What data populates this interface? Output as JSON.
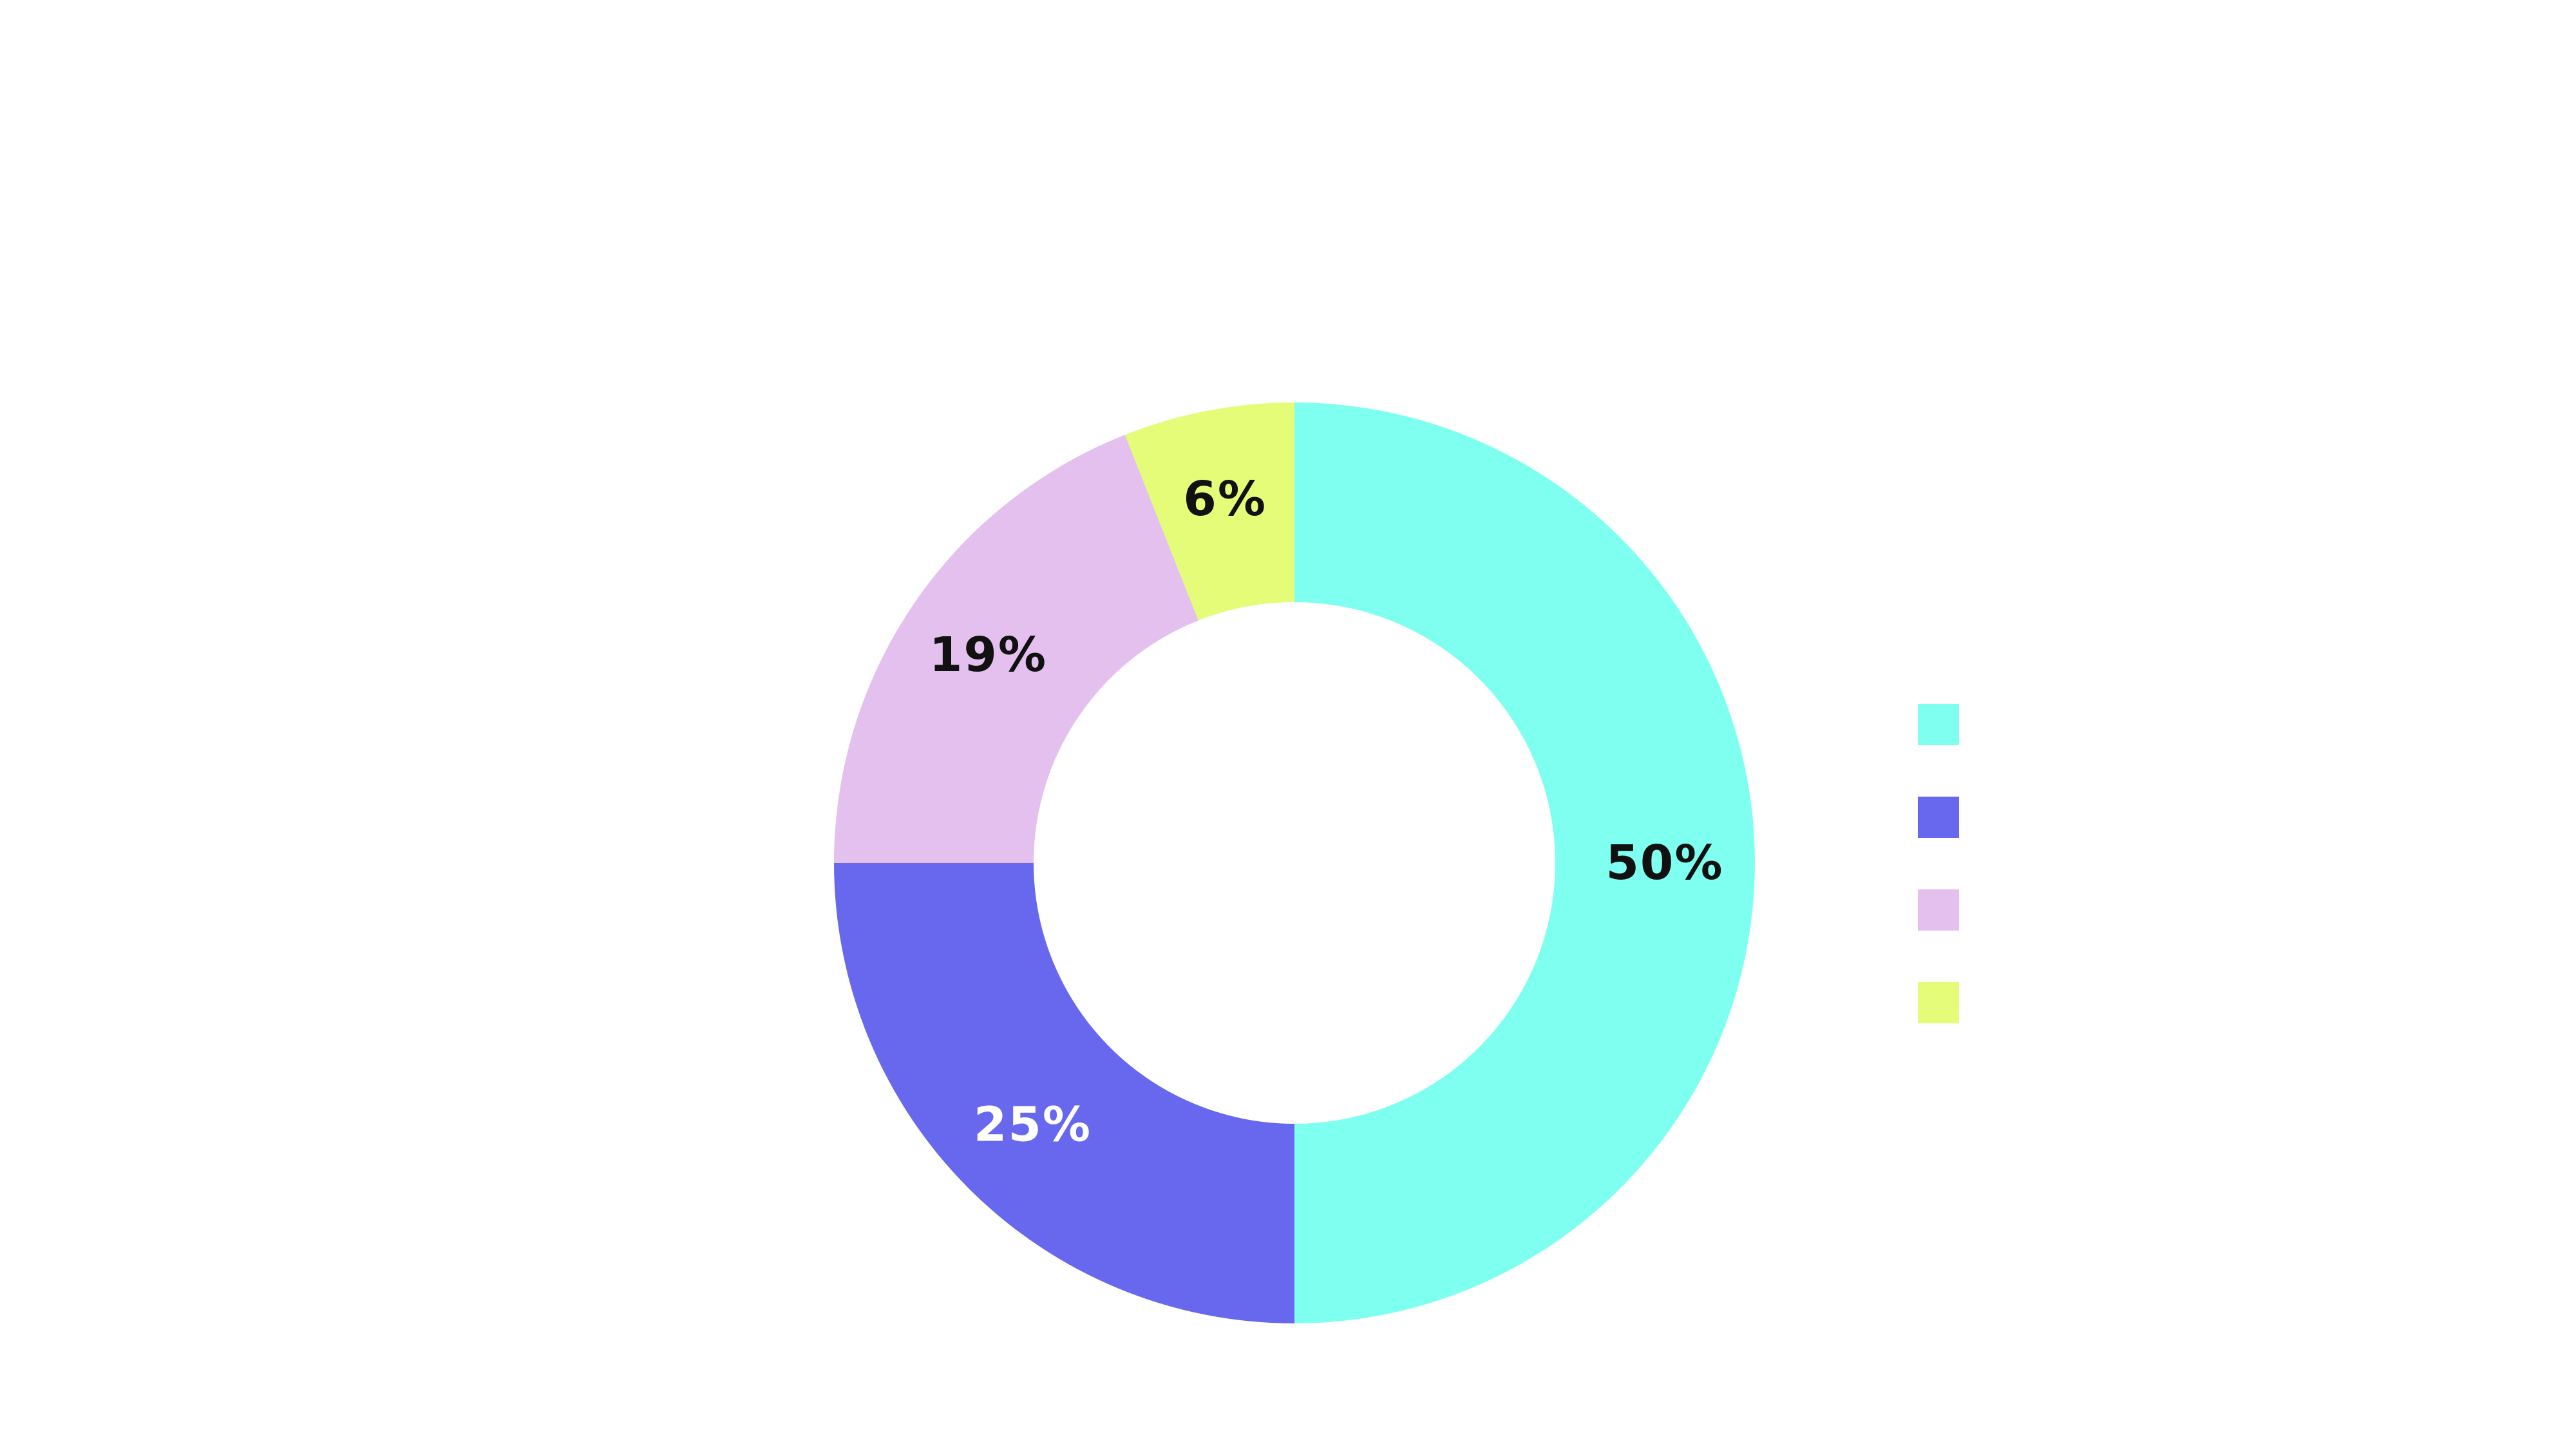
{
  "chart_data": {
    "type": "pie",
    "variant": "donut",
    "title": "",
    "legend_position": "right",
    "slices": [
      {
        "label": "",
        "value": 50,
        "display": "50%",
        "color": "#7ffff0",
        "label_color": "#111111"
      },
      {
        "label": "",
        "value": 25,
        "display": "25%",
        "color": "#6868ee",
        "label_color": "#ffffff"
      },
      {
        "label": "",
        "value": 19,
        "display": "19%",
        "color": "#e4c0ee",
        "label_color": "#111111"
      },
      {
        "label": "",
        "value": 6,
        "display": "6%",
        "color": "#e5fc78",
        "label_color": "#111111"
      }
    ]
  }
}
